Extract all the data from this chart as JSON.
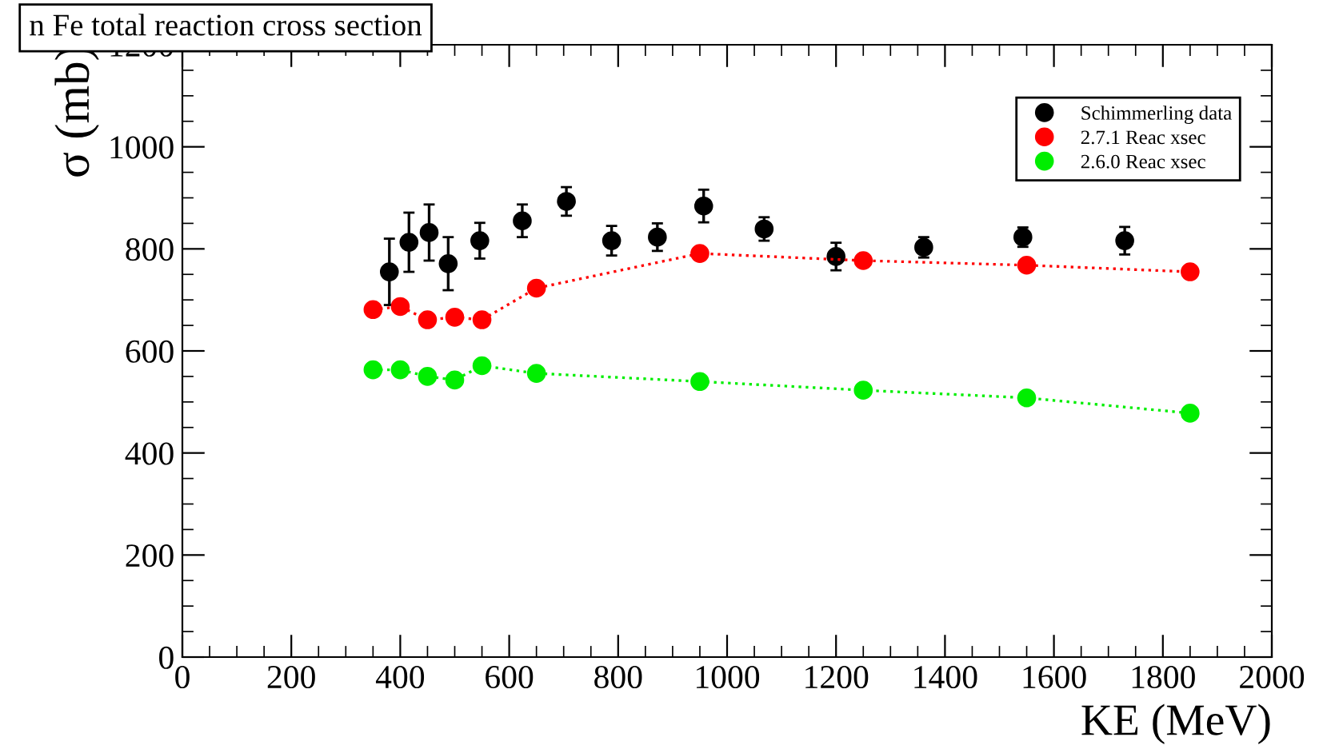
{
  "chart_data": {
    "type": "scatter",
    "title": "n Fe total reaction cross section",
    "xlabel": "KE (MeV)",
    "ylabel": "σ (mb)",
    "xlim": [
      0,
      2000
    ],
    "xticks": [
      0,
      200,
      400,
      600,
      800,
      1000,
      1200,
      1400,
      1600,
      1800,
      2000
    ],
    "ylim": [
      0,
      1200
    ],
    "yticks": [
      0,
      200,
      400,
      600,
      800,
      1000,
      1200
    ],
    "grid": false,
    "legend": "top right",
    "marker": "circle",
    "series": [
      {
        "name": "Schimmerling data",
        "color": "#000000",
        "x": [
          380,
          416,
          453,
          488,
          546,
          624,
          705,
          788,
          872,
          957,
          1068,
          1200,
          1361,
          1543,
          1730
        ],
        "values": [
          755,
          813,
          832,
          771,
          816,
          855,
          893,
          816,
          823,
          884,
          839,
          785,
          803,
          823,
          816
        ],
        "errors": [
          65,
          58,
          55,
          52,
          35,
          32,
          28,
          29,
          27,
          32,
          23,
          27,
          20,
          19,
          27
        ]
      },
      {
        "name": "2.7.1 Reac xsec",
        "type": "line",
        "line_style": "dotted",
        "color": "#ff0000",
        "x": [
          350,
          400,
          450,
          500,
          550,
          650,
          950,
          1250,
          1550,
          1850
        ],
        "values": [
          681,
          687,
          661,
          666,
          661,
          723,
          791,
          777,
          768,
          755
        ]
      },
      {
        "name": "2.6.0 Reac xsec",
        "type": "line",
        "line_style": "dotted",
        "color": "#00ee00",
        "x": [
          350,
          400,
          450,
          500,
          550,
          650,
          950,
          1250,
          1550,
          1850
        ],
        "values": [
          563,
          563,
          550,
          543,
          571,
          556,
          540,
          523,
          508,
          478
        ]
      }
    ]
  }
}
